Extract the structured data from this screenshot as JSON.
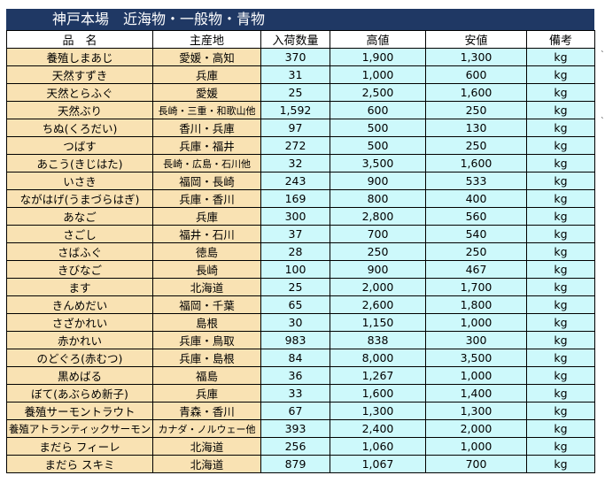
{
  "title": "神戸本場　近海物・一般物・青物",
  "headers": [
    "品　名",
    "主産地",
    "入荷数量",
    "高値",
    "安値",
    "備考"
  ],
  "rows": [
    {
      "name": "養殖しまあじ",
      "origin": "愛媛・高知",
      "qty": "370",
      "high": "1,900",
      "low": "1,300",
      "unit": "kg"
    },
    {
      "name": "天然すずき",
      "origin": "兵庫",
      "qty": "31",
      "high": "1,000",
      "low": "600",
      "unit": "kg"
    },
    {
      "name": "天然とらふぐ",
      "origin": "愛媛",
      "qty": "25",
      "high": "2,500",
      "low": "1,600",
      "unit": "kg"
    },
    {
      "name": "天然ぶり",
      "origin": "長崎・三重・和歌山他",
      "qty": "1,592",
      "high": "600",
      "low": "250",
      "unit": "kg"
    },
    {
      "name": "ちぬ(くろだい)",
      "origin": "香川・兵庫",
      "qty": "97",
      "high": "500",
      "low": "130",
      "unit": "kg"
    },
    {
      "name": "つばす",
      "origin": "兵庫・福井",
      "qty": "272",
      "high": "500",
      "low": "250",
      "unit": "kg"
    },
    {
      "name": "あこう(きじはた)",
      "origin": "長崎・広島・石川他",
      "qty": "32",
      "high": "3,500",
      "low": "1,600",
      "unit": "kg"
    },
    {
      "name": "いさき",
      "origin": "福岡・長崎",
      "qty": "243",
      "high": "900",
      "low": "533",
      "unit": "kg"
    },
    {
      "name": "ながはげ(うまづらはぎ)",
      "origin": "兵庫・香川",
      "qty": "169",
      "high": "800",
      "low": "400",
      "unit": "kg"
    },
    {
      "name": "あなご",
      "origin": "兵庫",
      "qty": "300",
      "high": "2,800",
      "low": "560",
      "unit": "kg"
    },
    {
      "name": "さごし",
      "origin": "福井・石川",
      "qty": "37",
      "high": "700",
      "low": "540",
      "unit": "kg"
    },
    {
      "name": "さばふぐ",
      "origin": "徳島",
      "qty": "28",
      "high": "250",
      "low": "250",
      "unit": "kg"
    },
    {
      "name": "きびなご",
      "origin": "長崎",
      "qty": "100",
      "high": "900",
      "low": "467",
      "unit": "kg"
    },
    {
      "name": "ます",
      "origin": "北海道",
      "qty": "25",
      "high": "2,000",
      "low": "1,700",
      "unit": "kg"
    },
    {
      "name": "きんめだい",
      "origin": "福岡・千葉",
      "qty": "65",
      "high": "2,600",
      "low": "1,800",
      "unit": "kg"
    },
    {
      "name": "さざかれい",
      "origin": "島根",
      "qty": "30",
      "high": "1,150",
      "low": "1,000",
      "unit": "kg"
    },
    {
      "name": "赤かれい",
      "origin": "兵庫・鳥取",
      "qty": "983",
      "high": "838",
      "low": "300",
      "unit": "kg"
    },
    {
      "name": "のどぐろ(赤むつ)",
      "origin": "兵庫・島根",
      "qty": "84",
      "high": "8,000",
      "low": "3,500",
      "unit": "kg"
    },
    {
      "name": "黒めばる",
      "origin": "福島",
      "qty": "36",
      "high": "1,267",
      "low": "1,000",
      "unit": "kg"
    },
    {
      "name": "ぼて(あぶらめ新子)",
      "origin": "兵庫",
      "qty": "33",
      "high": "1,600",
      "low": "1,400",
      "unit": "kg"
    },
    {
      "name": "養殖サーモントラウト",
      "origin": "青森・香川",
      "qty": "67",
      "high": "1,300",
      "low": "1,300",
      "unit": "kg"
    },
    {
      "name": "養殖アトランティックサーモン",
      "origin": "カナダ・ノルウェー他",
      "qty": "393",
      "high": "2,400",
      "low": "2,000",
      "unit": "kg"
    },
    {
      "name": "まだら フィーレ",
      "origin": "北海道",
      "qty": "256",
      "high": "1,060",
      "low": "1,000",
      "unit": "kg"
    },
    {
      "name": "まだら スキミ",
      "origin": "北海道",
      "qty": "879",
      "high": "1,067",
      "low": "700",
      "unit": "kg"
    }
  ]
}
